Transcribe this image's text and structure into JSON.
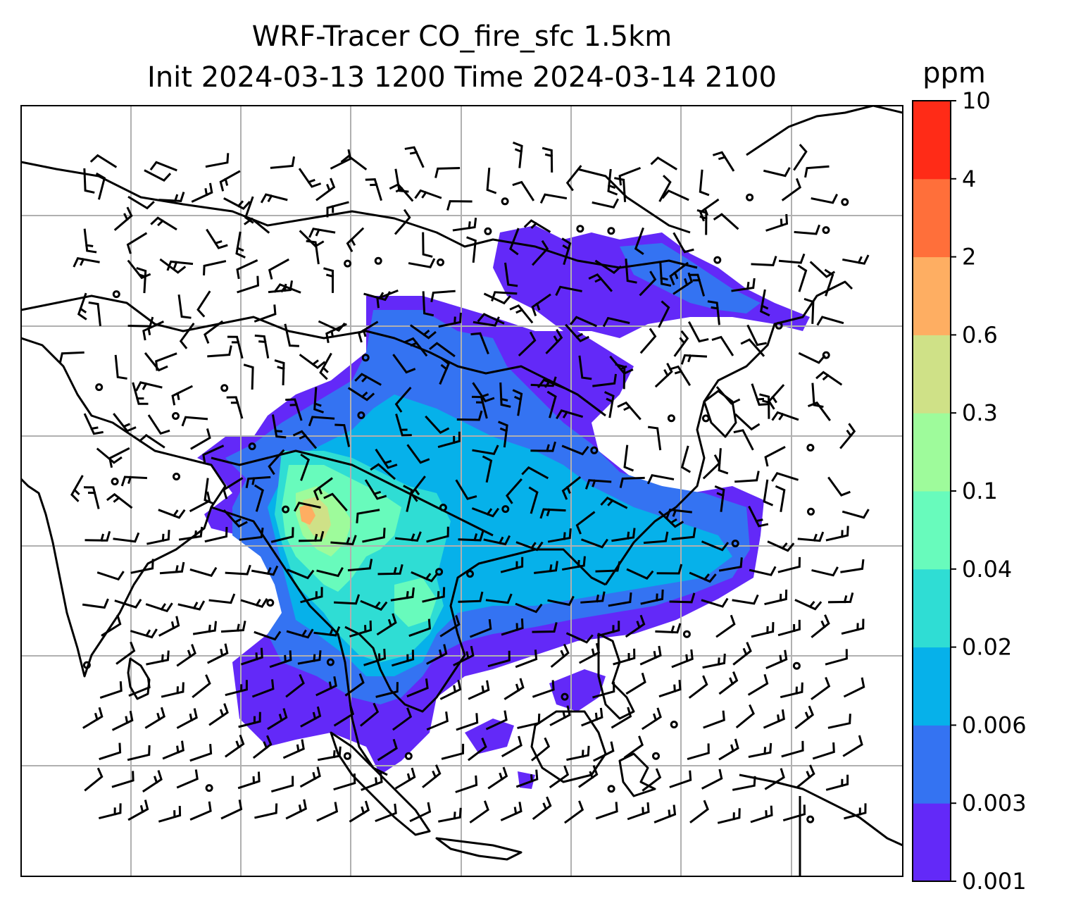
{
  "figure": {
    "title_line1": "WRF-Tracer CO_fire_sfc 1.5km",
    "title_line2": "Init 2024-03-13 1200 Time 2024-03-14 2100"
  },
  "colorbar": {
    "label": "ppm",
    "levels": [
      "0.001",
      "0.003",
      "0.006",
      "0.02",
      "0.04",
      "0.1",
      "0.3",
      "0.6",
      "2",
      "4",
      "10"
    ],
    "colors": [
      "#6329f8",
      "#3473f2",
      "#06b1ea",
      "#2fddd4",
      "#68fbbc",
      "#9efb9b",
      "#cfe187",
      "#feae62",
      "#ff6f3a",
      "#ff2b17"
    ]
  },
  "map": {
    "gridlines": true,
    "gridline_color": "#b0b0b0",
    "coastline_color": "#000000",
    "wind_barbs": true,
    "calm_markers": true
  }
}
